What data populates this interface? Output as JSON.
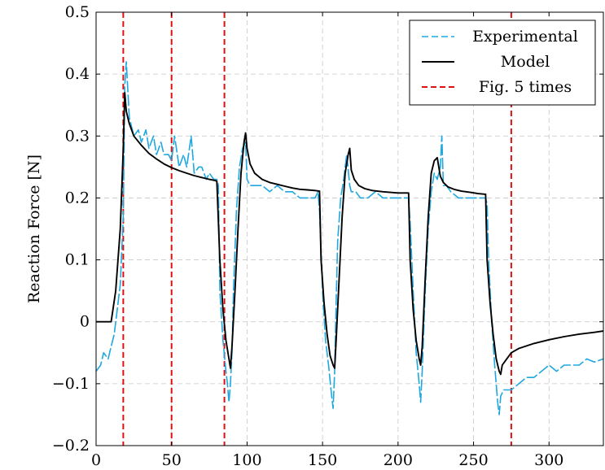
{
  "chart_data": {
    "type": "line",
    "title": "",
    "xlabel": "",
    "ylabel": "Reaction Force [N]",
    "xlim": [
      0,
      336
    ],
    "ylim": [
      -0.2,
      0.5
    ],
    "grid": true,
    "legend_position": "top-right",
    "x_ticks": [
      0,
      50,
      100,
      150,
      200,
      250,
      300
    ],
    "x_tick_labels": [
      "0",
      "50",
      "100",
      "150",
      "200",
      "250",
      "300"
    ],
    "y_ticks": [
      -0.2,
      -0.1,
      0,
      0.1,
      0.2,
      0.3,
      0.4,
      0.5
    ],
    "y_tick_labels": [
      "−0.2",
      "−0.1",
      "0",
      "0.1",
      "0.2",
      "0.3",
      "0.4",
      "0.5"
    ],
    "series": [
      {
        "name": "Experimental",
        "color": "#1fa8e0",
        "style": "dashed",
        "x": [
          0,
          3,
          5,
          8,
          10,
          12,
          14,
          16,
          18,
          19,
          20,
          22,
          25,
          28,
          30,
          33,
          35,
          38,
          40,
          43,
          45,
          48,
          50,
          52,
          55,
          58,
          60,
          63,
          65,
          68,
          70,
          73,
          75,
          78,
          80,
          81,
          82,
          84,
          86,
          87,
          88,
          89,
          90,
          91,
          93,
          95,
          97,
          99,
          100,
          102,
          105,
          110,
          115,
          120,
          125,
          130,
          135,
          140,
          145,
          147,
          148,
          150,
          152,
          154,
          156,
          157,
          158,
          159,
          160,
          162,
          164,
          166,
          168,
          169,
          170,
          172,
          175,
          180,
          185,
          190,
          195,
          200,
          205,
          207,
          208,
          210,
          212,
          214,
          215,
          216,
          218,
          220,
          222,
          224,
          226,
          228,
          229,
          230,
          232,
          235,
          240,
          245,
          250,
          255,
          258,
          259,
          260,
          262,
          264,
          266,
          267,
          268,
          270,
          275,
          280,
          285,
          290,
          295,
          300,
          305,
          310,
          315,
          320,
          325,
          330,
          336
        ],
        "values": [
          -0.08,
          -0.07,
          -0.05,
          -0.06,
          -0.04,
          -0.02,
          0.02,
          0.06,
          0.17,
          0.38,
          0.42,
          0.33,
          0.3,
          0.31,
          0.29,
          0.31,
          0.28,
          0.3,
          0.27,
          0.29,
          0.27,
          0.27,
          0.26,
          0.3,
          0.25,
          0.27,
          0.25,
          0.3,
          0.24,
          0.25,
          0.25,
          0.23,
          0.24,
          0.23,
          0.23,
          0.22,
          0.05,
          -0.03,
          -0.08,
          -0.1,
          -0.13,
          -0.1,
          -0.05,
          0.05,
          0.18,
          0.25,
          0.28,
          0.29,
          0.23,
          0.22,
          0.22,
          0.22,
          0.21,
          0.22,
          0.21,
          0.21,
          0.2,
          0.2,
          0.2,
          0.21,
          0.18,
          0.05,
          -0.03,
          -0.07,
          -0.12,
          -0.14,
          -0.08,
          0.03,
          0.13,
          0.2,
          0.23,
          0.27,
          0.22,
          0.21,
          0.21,
          0.21,
          0.2,
          0.2,
          0.21,
          0.2,
          0.2,
          0.2,
          0.2,
          0.2,
          0.16,
          0.05,
          -0.05,
          -0.1,
          -0.13,
          -0.08,
          0.05,
          0.15,
          0.21,
          0.24,
          0.23,
          0.25,
          0.3,
          0.22,
          0.22,
          0.21,
          0.2,
          0.2,
          0.2,
          0.2,
          0.2,
          0.19,
          0.1,
          0.0,
          -0.07,
          -0.13,
          -0.15,
          -0.12,
          -0.11,
          -0.11,
          -0.1,
          -0.09,
          -0.09,
          -0.08,
          -0.07,
          -0.08,
          -0.07,
          -0.07,
          -0.07,
          -0.06,
          -0.065,
          -0.06
        ]
      },
      {
        "name": "Model",
        "color": "#000000",
        "style": "solid",
        "x": [
          0,
          10,
          13,
          16,
          18,
          19,
          20,
          22,
          25,
          30,
          35,
          40,
          45,
          50,
          55,
          60,
          65,
          70,
          75,
          79,
          80,
          82,
          84,
          86,
          88,
          89,
          90,
          92,
          94,
          96,
          98,
          99,
          100,
          102,
          105,
          110,
          115,
          120,
          125,
          130,
          135,
          140,
          145,
          148,
          149,
          151,
          153,
          155,
          157,
          158,
          159,
          161,
          163,
          165,
          167,
          168,
          169,
          171,
          174,
          178,
          183,
          190,
          195,
          200,
          205,
          207,
          208,
          210,
          212,
          214,
          215,
          216,
          218,
          220,
          222,
          224,
          226,
          227,
          228,
          230,
          233,
          237,
          242,
          248,
          253,
          258,
          259,
          261,
          263,
          265,
          267,
          268,
          269,
          272,
          275,
          280,
          290,
          300,
          310,
          320,
          330,
          336
        ],
        "values": [
          0.0,
          0.0,
          0.05,
          0.15,
          0.28,
          0.37,
          0.34,
          0.32,
          0.3,
          0.285,
          0.272,
          0.263,
          0.255,
          0.249,
          0.244,
          0.24,
          0.236,
          0.233,
          0.23,
          0.228,
          0.227,
          0.1,
          0.02,
          -0.03,
          -0.06,
          -0.075,
          -0.04,
          0.05,
          0.15,
          0.24,
          0.29,
          0.305,
          0.28,
          0.255,
          0.24,
          0.23,
          0.225,
          0.222,
          0.219,
          0.216,
          0.214,
          0.213,
          0.212,
          0.211,
          0.1,
          0.03,
          -0.02,
          -0.055,
          -0.07,
          -0.075,
          -0.03,
          0.07,
          0.17,
          0.24,
          0.27,
          0.28,
          0.245,
          0.23,
          0.22,
          0.215,
          0.212,
          0.21,
          0.209,
          0.208,
          0.208,
          0.208,
          0.1,
          0.02,
          -0.03,
          -0.06,
          -0.07,
          -0.04,
          0.07,
          0.17,
          0.24,
          0.26,
          0.265,
          0.25,
          0.235,
          0.225,
          0.218,
          0.214,
          0.211,
          0.209,
          0.207,
          0.206,
          0.1,
          0.03,
          -0.02,
          -0.06,
          -0.08,
          -0.085,
          -0.07,
          -0.06,
          -0.05,
          -0.043,
          -0.035,
          -0.029,
          -0.024,
          -0.02,
          -0.017,
          -0.015
        ]
      }
    ],
    "vlines": {
      "name": "Fig. 5 times",
      "color": "#e01010",
      "style": "dashed",
      "x": [
        18,
        50,
        85,
        275
      ]
    }
  }
}
